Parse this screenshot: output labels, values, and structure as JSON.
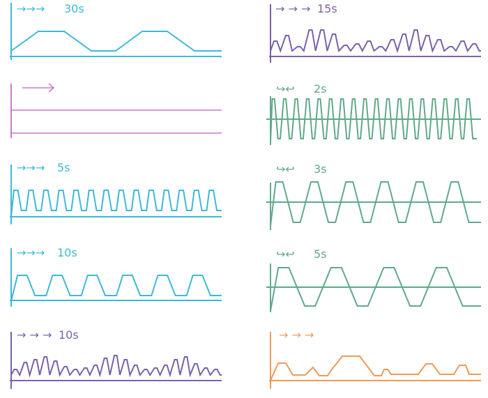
{
  "colors": {
    "cyan": "#3cb9d8",
    "purple": "#7a62a8",
    "pink": "#c878c6",
    "green": "#5fa989",
    "orange": "#ef9a57"
  },
  "panels": [
    {
      "id": "p1",
      "color": "cyan",
      "arrows": "→→→",
      "label": "30s",
      "shape": "trapezoid-slow"
    },
    {
      "id": "p2",
      "color": "purple",
      "arrows": "→ → →",
      "label": "15s",
      "shape": "random-wave-fast"
    },
    {
      "id": "p3",
      "color": "pink",
      "arrows": "⟶",
      "label": "",
      "shape": "constant-lines"
    },
    {
      "id": "p4",
      "color": "green",
      "arrows": "↪↩",
      "label": "2s",
      "shape": "alternating-fast"
    },
    {
      "id": "p5",
      "color": "cyan",
      "arrows": "→→→",
      "label": "5s",
      "shape": "trapezoid-fast"
    },
    {
      "id": "p6",
      "color": "green",
      "arrows": "↪↩",
      "label": "3s",
      "shape": "alternating-medium"
    },
    {
      "id": "p7",
      "color": "cyan",
      "arrows": "→→→",
      "label": "10s",
      "shape": "trapezoid-medium"
    },
    {
      "id": "p8",
      "color": "green",
      "arrows": "↪↩",
      "label": "5s",
      "shape": "alternating-slow"
    },
    {
      "id": "p9",
      "color": "purple",
      "arrows": "→ → →",
      "label": "10s",
      "shape": "random-wave-medium"
    },
    {
      "id": "p10",
      "color": "orange",
      "arrows": "→ → →",
      "label": "",
      "shape": "random-plateaus"
    }
  ]
}
